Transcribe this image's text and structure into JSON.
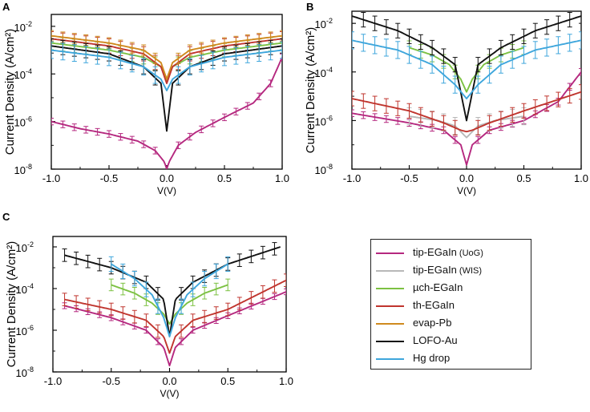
{
  "chart_data": [
    {
      "type": "line",
      "panel_label": "A",
      "xlabel": "V(V)",
      "ylabel": "Current Density (A/cm²)",
      "xlim": [
        -1.0,
        1.0
      ],
      "ylim_log10": [
        -8,
        -1.5
      ],
      "x_ticks": [
        "-1.0",
        "-0.5",
        "0.0",
        "0.5",
        "1.0"
      ],
      "y_ticks": [
        {
          "base": "10",
          "exp": "-8"
        },
        {
          "base": "10",
          "exp": "-6"
        },
        {
          "base": "10",
          "exp": "-4"
        },
        {
          "base": "10",
          "exp": "-2"
        }
      ],
      "series": [
        {
          "name": "tip-EGaIn (UoG)",
          "x": [
            -1.0,
            -0.75,
            -0.5,
            -0.25,
            -0.1,
            -0.02,
            0.0,
            0.02,
            0.1,
            0.25,
            0.5,
            0.75,
            0.9,
            1.0
          ],
          "y": [
            1e-06,
            5e-07,
            3e-07,
            1.5e-07,
            6e-08,
            2e-08,
            1e-08,
            2e-08,
            1e-07,
            3.5e-07,
            1.5e-06,
            6e-06,
            4e-05,
            0.0005
          ]
        },
        {
          "name": "µch-EGaIn",
          "x": [
            -1.0,
            -0.5,
            -0.2,
            -0.05,
            0.0,
            0.05,
            0.2,
            0.5,
            1.0
          ],
          "y": [
            0.002,
            0.001,
            0.0005,
            0.0002,
            5e-05,
            0.0002,
            0.0005,
            0.001,
            0.002
          ]
        },
        {
          "name": "th-EGaIn",
          "x": [
            -1.0,
            -0.5,
            -0.2,
            -0.05,
            0.0,
            0.05,
            0.2,
            0.5,
            1.0
          ],
          "y": [
            0.003,
            0.0015,
            0.0007,
            0.0002,
            4e-05,
            0.0002,
            0.0007,
            0.0015,
            0.003
          ]
        },
        {
          "name": "evap-Pb",
          "x": [
            -1.0,
            -0.5,
            -0.2,
            -0.05,
            0.0,
            0.05,
            0.2,
            0.5,
            1.0
          ],
          "y": [
            0.004,
            0.002,
            0.001,
            0.0003,
            6e-05,
            0.0003,
            0.001,
            0.002,
            0.004
          ]
        },
        {
          "name": "LOFO-Au",
          "x": [
            -1.0,
            -0.5,
            -0.2,
            -0.05,
            0.0,
            0.05,
            0.2,
            0.5,
            1.0
          ],
          "y": [
            0.0015,
            0.0007,
            0.0002,
            4e-05,
            4e-07,
            4e-05,
            0.0002,
            0.0007,
            0.0015
          ]
        },
        {
          "name": "Hg drop",
          "x": [
            -1.0,
            -0.5,
            -0.2,
            -0.05,
            0.0,
            0.05,
            0.2,
            0.5,
            1.0
          ],
          "y": [
            0.001,
            0.0005,
            0.0002,
            6e-05,
            2e-05,
            6e-05,
            0.0002,
            0.0005,
            0.001
          ]
        }
      ]
    },
    {
      "type": "line",
      "panel_label": "B",
      "xlabel": "V(V)",
      "ylabel": "Current Density (A/cm²)",
      "xlim": [
        -1.0,
        1.0
      ],
      "ylim_log10": [
        -8,
        -1.5
      ],
      "x_ticks": [
        "-1.0",
        "-0.5",
        "0.0",
        "0.5",
        "1.0"
      ],
      "y_ticks": [
        {
          "base": "10",
          "exp": "-8"
        },
        {
          "base": "10",
          "exp": "-6"
        },
        {
          "base": "10",
          "exp": "-4"
        },
        {
          "base": "10",
          "exp": "-2"
        }
      ],
      "series": [
        {
          "name": "tip-EGaIn (UoG)",
          "x": [
            -1.0,
            -0.5,
            -0.2,
            -0.05,
            0.0,
            0.05,
            0.2,
            0.5,
            0.8,
            1.0
          ],
          "y": [
            2e-06,
            8e-07,
            4e-07,
            1e-07,
            1.5e-08,
            1e-07,
            4e-07,
            1e-06,
            6e-06,
            0.0001
          ]
        },
        {
          "name": "tip-EGaIn (WIS)",
          "x": [
            -0.5,
            -0.25,
            -0.1,
            0.0,
            0.1,
            0.25,
            0.5
          ],
          "y": [
            1.5e-06,
            1e-06,
            6e-07,
            2e-07,
            6e-07,
            1e-06,
            1.5e-06
          ]
        },
        {
          "name": "µch-EGaIn",
          "x": [
            -0.5,
            -0.3,
            -0.15,
            -0.05,
            0.0,
            0.05,
            0.15,
            0.3,
            0.5
          ],
          "y": [
            0.001,
            0.0005,
            0.0002,
            5e-05,
            1.5e-05,
            5e-05,
            0.0002,
            0.0005,
            0.001
          ]
        },
        {
          "name": "th-EGaIn",
          "x": [
            -1.0,
            -0.5,
            -0.2,
            -0.05,
            0.0,
            0.05,
            0.2,
            0.5,
            1.0
          ],
          "y": [
            8e-06,
            2.5e-06,
            8e-07,
            4e-07,
            3.5e-07,
            4e-07,
            8e-07,
            2.5e-06,
            1.5e-05
          ]
        },
        {
          "name": "LOFO-Au",
          "x": [
            -1.0,
            -0.6,
            -0.3,
            -0.1,
            0.0,
            0.1,
            0.3,
            0.6,
            1.0
          ],
          "y": [
            0.02,
            0.005,
            0.001,
            0.0002,
            1e-06,
            0.0002,
            0.001,
            0.005,
            0.02
          ]
        },
        {
          "name": "Hg drop",
          "x": [
            -1.0,
            -0.6,
            -0.3,
            -0.1,
            0.0,
            0.1,
            0.3,
            0.6,
            1.0
          ],
          "y": [
            0.002,
            0.0008,
            0.0002,
            3e-05,
            8e-06,
            3e-05,
            0.0002,
            0.0008,
            0.002
          ]
        }
      ]
    },
    {
      "type": "line",
      "panel_label": "C",
      "xlabel": "V(V)",
      "ylabel": "Current Density (A/cm²)",
      "xlim": [
        -1.0,
        1.0
      ],
      "ylim_log10": [
        -8,
        -1.5
      ],
      "x_ticks": [
        "-1.0",
        "-0.5",
        "0.0",
        "0.5",
        "1.0"
      ],
      "y_ticks": [
        {
          "base": "10",
          "exp": "-8"
        },
        {
          "base": "10",
          "exp": "-6"
        },
        {
          "base": "10",
          "exp": "-4"
        },
        {
          "base": "10",
          "exp": "-2"
        }
      ],
      "series": [
        {
          "name": "tip-EGaIn (UoG)",
          "x": [
            -0.9,
            -0.5,
            -0.2,
            -0.05,
            0.0,
            0.05,
            0.2,
            0.5,
            1.0
          ],
          "y": [
            1.5e-05,
            4e-06,
            1e-06,
            1.5e-07,
            2e-08,
            1.5e-07,
            1e-06,
            5e-06,
            7e-05
          ]
        },
        {
          "name": "µch-EGaIn",
          "x": [
            -0.5,
            -0.3,
            -0.15,
            -0.05,
            0.0,
            0.05,
            0.15,
            0.3,
            0.5
          ],
          "y": [
            0.00015,
            6e-05,
            2e-05,
            6e-06,
            2e-06,
            6e-06,
            2e-05,
            6e-05,
            0.00015
          ]
        },
        {
          "name": "th-EGaIn",
          "x": [
            -0.9,
            -0.5,
            -0.2,
            -0.05,
            0.0,
            0.05,
            0.2,
            0.5,
            1.0
          ],
          "y": [
            3e-05,
            1e-05,
            3e-06,
            5e-07,
            8e-08,
            5e-07,
            3e-06,
            1e-05,
            0.00025
          ]
        },
        {
          "name": "LOFO-Au",
          "x": [
            -0.9,
            -0.5,
            -0.2,
            -0.05,
            0.0,
            0.05,
            0.2,
            0.5,
            0.95
          ],
          "y": [
            0.004,
            0.001,
            0.0002,
            3e-05,
            5e-07,
            3e-05,
            0.0002,
            0.0015,
            0.01
          ]
        },
        {
          "name": "Hg drop",
          "x": [
            -0.5,
            -0.3,
            -0.15,
            -0.05,
            0.0,
            0.05,
            0.15,
            0.3,
            0.5
          ],
          "y": [
            0.0015,
            0.0003,
            5e-05,
            4e-06,
            5e-07,
            4e-06,
            5e-05,
            0.0003,
            0.0015
          ]
        }
      ]
    }
  ],
  "legend": [
    {
      "name": "tip-EGaIn",
      "sub": "(UoG)"
    },
    {
      "name": "tip-EGaIn",
      "sub": "(WIS)"
    },
    {
      "name": "µch-EGaIn",
      "sub": ""
    },
    {
      "name": "th-EGaIn",
      "sub": ""
    },
    {
      "name": "evap-Pb",
      "sub": ""
    },
    {
      "name": "LOFO-Au",
      "sub": ""
    },
    {
      "name": "Hg drop",
      "sub": ""
    }
  ],
  "colors": {
    "tip-EGaIn (UoG)": "#b5287f",
    "tip-EGaIn (WIS)": "#b8b8b8",
    "µch-EGaIn": "#7cc142",
    "th-EGaIn": "#c0352e",
    "evap-Pb": "#cf8a1e",
    "LOFO-Au": "#111111",
    "Hg drop": "#3ea6dc"
  }
}
